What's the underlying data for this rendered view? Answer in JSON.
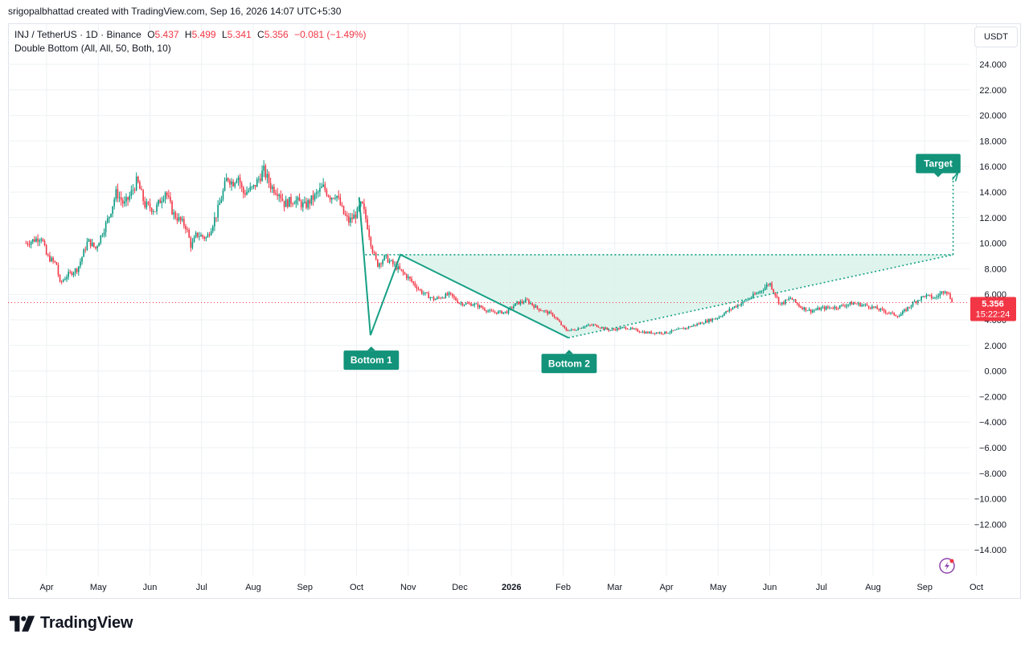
{
  "header": {
    "credit": "srigopalbhattad created with TradingView.com, Sep 16, 2026 14:07 UTC+5:30"
  },
  "legend": {
    "symbol": "INJ / TetherUS · 1D · Binance",
    "open_label": "O",
    "open": "5.437",
    "high_label": "H",
    "high": "5.499",
    "low_label": "L",
    "low": "5.341",
    "close_label": "C",
    "close": "5.356",
    "change": "−0.081 (−1.49%)",
    "indicator": "Double Bottom (All, All, 50, Both, 10)"
  },
  "currency_button": "USDT",
  "price_label": {
    "price": "5.356",
    "countdown": "15:22:24"
  },
  "brand": "TradingView",
  "colors": {
    "up": "#089981",
    "down": "#f23645",
    "pattern": "#16a085",
    "pattern_fill": "#d9f2ea",
    "label_bg": "#12937a",
    "grid": "#eef0f3",
    "price_line": "#f23645"
  },
  "chart_data": {
    "type": "candlestick",
    "ylim": [
      -15.5,
      26.5
    ],
    "y_ticks": [
      "24.000",
      "22.000",
      "20.000",
      "18.000",
      "16.000",
      "14.000",
      "12.000",
      "10.000",
      "8.000",
      "6.000",
      "4.000",
      "2.000",
      "0.000",
      "−2.000",
      "−4.000",
      "−6.000",
      "−8.000",
      "−10.000",
      "−12.000",
      "−14.000"
    ],
    "y_tick_values": [
      24,
      22,
      20,
      18,
      16,
      14,
      12,
      10,
      8,
      6,
      4,
      2,
      0,
      -2,
      -4,
      -6,
      -8,
      -10,
      -12,
      -14
    ],
    "x_ticks": [
      "Apr",
      "May",
      "Jun",
      "Jul",
      "Aug",
      "Sep",
      "Oct",
      "Nov",
      "Dec",
      "2026",
      "Feb",
      "Mar",
      "Apr",
      "May",
      "Jun",
      "Jul",
      "Aug",
      "Sep",
      "Oct"
    ],
    "x_tick_months": [
      0,
      1,
      2,
      3,
      4,
      5,
      6,
      7,
      8,
      9,
      10,
      11,
      12,
      13,
      14,
      15,
      16,
      17,
      18
    ],
    "x_tick_bold": [
      false,
      false,
      false,
      false,
      false,
      false,
      false,
      false,
      false,
      true,
      false,
      false,
      false,
      false,
      false,
      false,
      false,
      false,
      false
    ],
    "price_path": [
      [
        -0.4,
        10.0
      ],
      [
        -0.1,
        10.5
      ],
      [
        0.0,
        9.0
      ],
      [
        0.2,
        8.3
      ],
      [
        0.25,
        6.8
      ],
      [
        0.4,
        7.5
      ],
      [
        0.6,
        8.0
      ],
      [
        0.8,
        10.2
      ],
      [
        0.95,
        9.6
      ],
      [
        1.2,
        12.0
      ],
      [
        1.35,
        14.0
      ],
      [
        1.5,
        13.0
      ],
      [
        1.6,
        13.6
      ],
      [
        1.75,
        14.9
      ],
      [
        1.9,
        13.0
      ],
      [
        2.1,
        12.6
      ],
      [
        2.3,
        14.1
      ],
      [
        2.45,
        12.3
      ],
      [
        2.7,
        11.3
      ],
      [
        2.8,
        9.7
      ],
      [
        2.9,
        10.7
      ],
      [
        3.1,
        10.4
      ],
      [
        3.3,
        12.4
      ],
      [
        3.5,
        15.2
      ],
      [
        3.6,
        14.7
      ],
      [
        3.7,
        15.4
      ],
      [
        3.8,
        13.9
      ],
      [
        4.0,
        14.3
      ],
      [
        4.2,
        15.7
      ],
      [
        4.35,
        14.4
      ],
      [
        4.5,
        14.0
      ],
      [
        4.6,
        13.1
      ],
      [
        4.8,
        13.4
      ],
      [
        5.0,
        12.9
      ],
      [
        5.2,
        13.7
      ],
      [
        5.35,
        14.4
      ],
      [
        5.5,
        13.6
      ],
      [
        5.6,
        13.9
      ],
      [
        5.75,
        12.3
      ],
      [
        5.85,
        11.7
      ],
      [
        6.0,
        12.3
      ],
      [
        6.1,
        13.1
      ],
      [
        6.2,
        11.6
      ],
      [
        6.3,
        9.6
      ],
      [
        6.4,
        8.3
      ],
      [
        6.55,
        8.9
      ],
      [
        6.75,
        8.2
      ],
      [
        7.0,
        7.3
      ],
      [
        7.25,
        6.2
      ],
      [
        7.5,
        5.6
      ],
      [
        7.8,
        6.0
      ],
      [
        8.0,
        5.3
      ],
      [
        8.3,
        5.2
      ],
      [
        8.6,
        4.6
      ],
      [
        8.9,
        4.6
      ],
      [
        9.1,
        5.3
      ],
      [
        9.3,
        5.5
      ],
      [
        9.5,
        4.9
      ],
      [
        9.8,
        4.4
      ],
      [
        10.05,
        3.2
      ],
      [
        10.2,
        3.2
      ],
      [
        10.4,
        3.5
      ],
      [
        10.6,
        3.6
      ],
      [
        10.9,
        3.2
      ],
      [
        11.2,
        3.4
      ],
      [
        11.6,
        3.0
      ],
      [
        12.0,
        3.0
      ],
      [
        12.4,
        3.4
      ],
      [
        12.7,
        3.8
      ],
      [
        13.0,
        4.2
      ],
      [
        13.3,
        5.0
      ],
      [
        13.5,
        5.4
      ],
      [
        13.8,
        6.2
      ],
      [
        14.0,
        6.9
      ],
      [
        14.2,
        5.2
      ],
      [
        14.4,
        5.7
      ],
      [
        14.6,
        5.0
      ],
      [
        14.8,
        4.7
      ],
      [
        15.0,
        4.9
      ],
      [
        15.3,
        5.0
      ],
      [
        15.6,
        5.3
      ],
      [
        15.9,
        5.1
      ],
      [
        16.2,
        4.7
      ],
      [
        16.5,
        4.3
      ],
      [
        16.8,
        5.4
      ],
      [
        17.0,
        5.9
      ],
      [
        17.2,
        5.7
      ],
      [
        17.4,
        6.4
      ],
      [
        17.5,
        5.7
      ],
      [
        17.55,
        5.36
      ]
    ],
    "pattern": {
      "bottom1": {
        "label": "Bottom 1",
        "month": 6.27,
        "price": 2.8
      },
      "peak": {
        "month": 6.85,
        "price": 9.1
      },
      "bottom2": {
        "label": "Bottom 2",
        "month": 10.1,
        "price": 2.6
      },
      "neckline_start_month": 6.17,
      "neckline_price": 9.1,
      "breakout": {
        "month": 17.55,
        "price": 9.1
      },
      "target": {
        "label": "Target",
        "month": 17.65,
        "price": 15.6
      },
      "start": {
        "month": 6.05,
        "price": 13.6
      }
    },
    "last_price": 5.356
  }
}
